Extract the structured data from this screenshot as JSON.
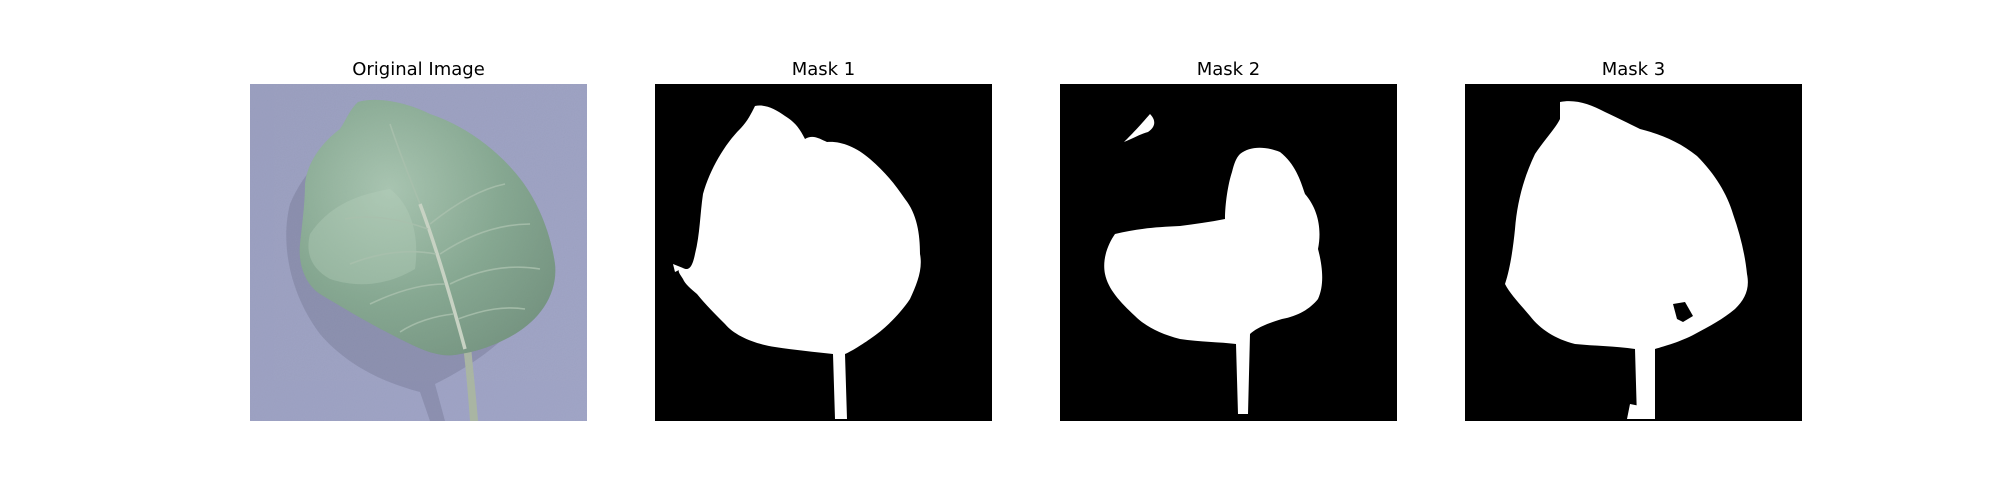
{
  "panels": [
    {
      "title": "Original Image",
      "kind": "photo"
    },
    {
      "title": "Mask 1",
      "kind": "mask"
    },
    {
      "title": "Mask 2",
      "kind": "mask"
    },
    {
      "title": "Mask 3",
      "kind": "mask"
    }
  ],
  "colors": {
    "background": "#a3a7c7",
    "leaf_dark": "#4f7a5e",
    "leaf_light": "#8fb39a",
    "vein": "#c7d2c3",
    "mask_background": "#000000",
    "mask_foreground": "#ffffff"
  }
}
